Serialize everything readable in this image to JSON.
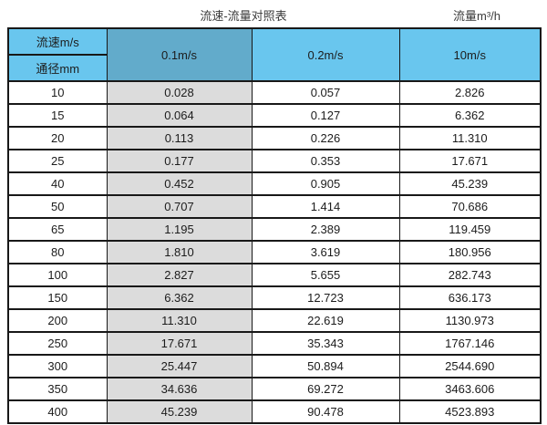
{
  "page_header": {
    "title": "流速-流量对照表",
    "unit_label": "流量m³/h"
  },
  "colors": {
    "header_blue": "#69C6EE",
    "header_dark_blue": "#62ABCB",
    "shaded_column_gray": "#DCDCDC",
    "border": "#181818"
  },
  "chart_data": {
    "type": "table",
    "title": "流速-流量对照表",
    "right_label": "流量m³/h",
    "header": {
      "corner_top": "流速m/s",
      "corner_bottom": "通径mm",
      "velocity_columns": [
        "0.1m/s",
        "0.2m/s",
        "10m/s"
      ]
    },
    "column_roles": [
      "diameter_mm",
      "flow_at_0.1ms",
      "flow_at_0.2ms",
      "flow_at_10ms"
    ],
    "rows": [
      [
        "10",
        "0.028",
        "0.057",
        "2.826"
      ],
      [
        "15",
        "0.064",
        "0.127",
        "6.362"
      ],
      [
        "20",
        "0.113",
        "0.226",
        "11.310"
      ],
      [
        "25",
        "0.177",
        "0.353",
        "17.671"
      ],
      [
        "40",
        "0.452",
        "0.905",
        "45.239"
      ],
      [
        "50",
        "0.707",
        "1.414",
        "70.686"
      ],
      [
        "65",
        "1.195",
        "2.389",
        "119.459"
      ],
      [
        "80",
        "1.810",
        "3.619",
        "180.956"
      ],
      [
        "100",
        "2.827",
        "5.655",
        "282.743"
      ],
      [
        "150",
        "6.362",
        "12.723",
        "636.173"
      ],
      [
        "200",
        "11.310",
        "22.619",
        "1130.973"
      ],
      [
        "250",
        "17.671",
        "35.343",
        "1767.146"
      ],
      [
        "300",
        "25.447",
        "50.894",
        "2544.690"
      ],
      [
        "350",
        "34.636",
        "69.272",
        "3463.606"
      ],
      [
        "400",
        "45.239",
        "90.478",
        "4523.893"
      ]
    ]
  }
}
